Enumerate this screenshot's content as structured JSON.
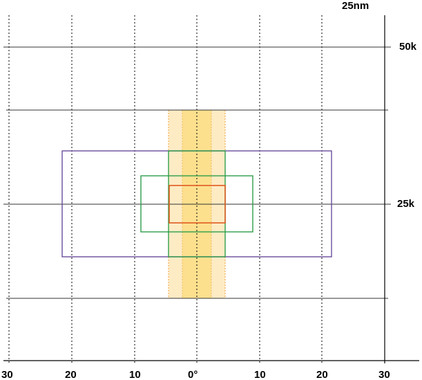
{
  "diagram": {
    "scale_label": "25nm",
    "altitude_labels": [
      "50k",
      "25k"
    ],
    "bearing_labels": [
      "30",
      "20",
      "10",
      "0°",
      "10",
      "20",
      "30"
    ],
    "colors": {
      "grid": "#000000",
      "band_outer": "#fdebc4",
      "band_inner": "#fde08e",
      "band_edge": "#f0a040",
      "purple_box": "#6a4c9c",
      "green_box": "#2e9e4a",
      "red_box": "#e05a20"
    }
  }
}
